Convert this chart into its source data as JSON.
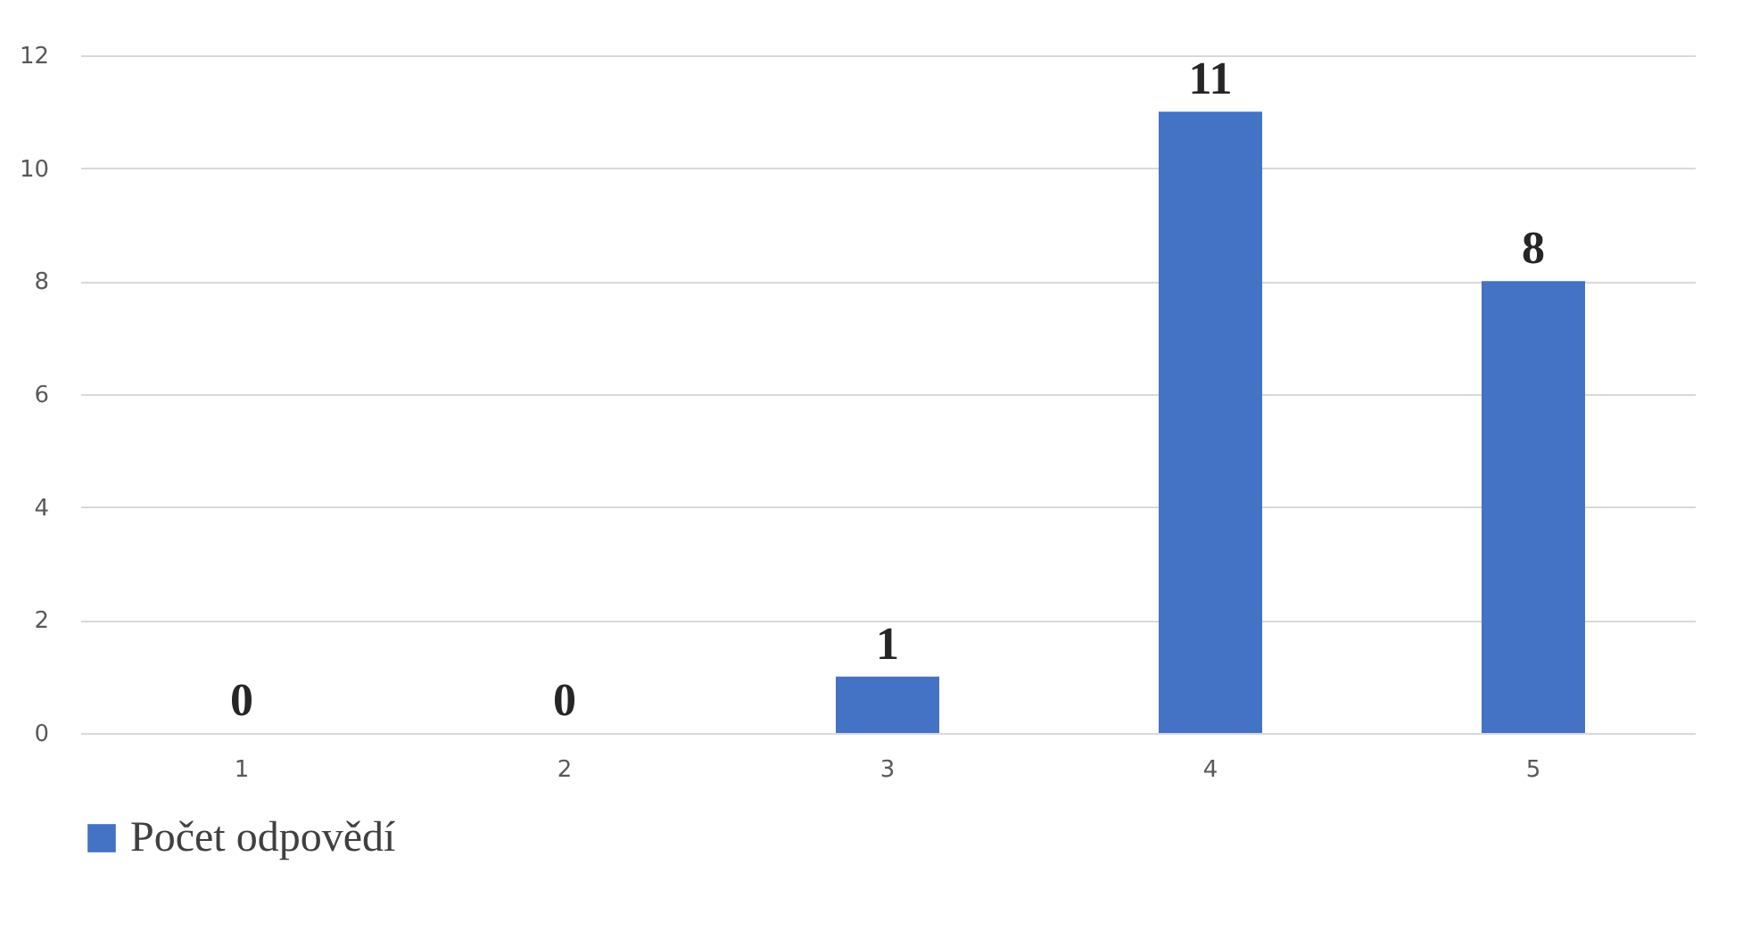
{
  "chart_data": {
    "type": "bar",
    "categories": [
      "1",
      "2",
      "3",
      "4",
      "5"
    ],
    "series": [
      {
        "name": "Počet odpovědí",
        "color": "#4472c4",
        "values": [
          0,
          0,
          1,
          11,
          8
        ]
      }
    ],
    "ylim": [
      0,
      12
    ],
    "yticks": [
      0,
      2,
      4,
      6,
      8,
      10,
      12
    ],
    "grid": "y",
    "legend": "bottom",
    "data_labels": true
  }
}
